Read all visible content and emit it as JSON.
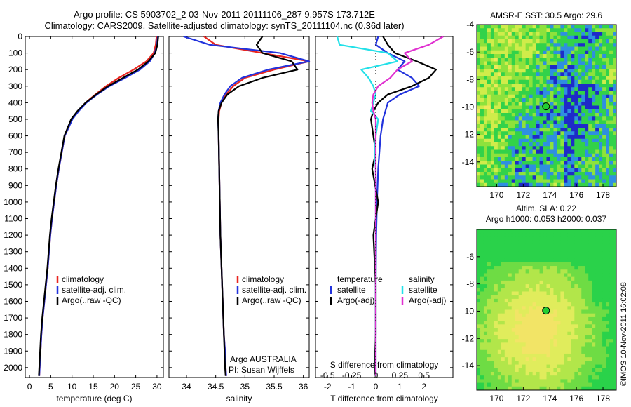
{
  "header": {
    "title_line1": "Argo profile: CS 5903702_2 03-Nov-2011 20111106_287 9.957S 173.712E",
    "title_line2": "Climatology: CARS2009. Satellite-adjusted climatology: synTS_20111104.nc (0.36d later)"
  },
  "colors": {
    "climatology": "#e8251f",
    "satellite": "#2233dd",
    "argo": "#000000",
    "sat_salinity": "#22e0e8",
    "argo_salinity": "#e030d0"
  },
  "chart_data": [
    {
      "type": "line",
      "name": "temperature-profile",
      "xlabel": "temperature (deg C)",
      "xlim": [
        -1,
        31.5
      ],
      "ylim": [
        2060,
        0
      ],
      "xticks": [
        0,
        5,
        10,
        15,
        20,
        25,
        30
      ],
      "yticks": [
        0,
        100,
        200,
        300,
        400,
        500,
        600,
        700,
        800,
        900,
        1000,
        1100,
        1200,
        1300,
        1400,
        1500,
        1600,
        1700,
        1800,
        1900,
        2000
      ],
      "legend": [
        "climatology",
        "satellite-adj. clim.",
        "Argo(..raw -QC)"
      ],
      "series": [
        {
          "name": "climatology",
          "color": "#e8251f",
          "x": [
            29.9,
            29.7,
            29.2,
            27.5,
            24.5,
            21.0,
            18.0,
            15.5,
            13.2,
            11.5,
            10.0,
            9.2,
            8.3,
            7.6,
            6.9,
            6.3,
            5.8,
            5.3,
            4.9,
            4.6,
            4.3,
            3.9,
            3.5,
            3.1,
            2.8,
            2.6,
            2.4,
            2.3
          ],
          "y": [
            0,
            50,
            100,
            150,
            200,
            250,
            300,
            350,
            400,
            450,
            500,
            550,
            600,
            700,
            800,
            900,
            1000,
            1100,
            1200,
            1300,
            1400,
            1500,
            1600,
            1700,
            1800,
            1900,
            2000,
            2050
          ]
        },
        {
          "name": "satellite-adj. clim.",
          "color": "#2233dd",
          "x": [
            30.2,
            30.0,
            29.5,
            28.3,
            26.0,
            22.5,
            18.8,
            15.9,
            13.4,
            11.6,
            10.1,
            9.2,
            8.3,
            7.6,
            6.9,
            6.3,
            5.8,
            5.3,
            4.9,
            4.6,
            4.3,
            3.9,
            3.5,
            3.1,
            2.8,
            2.6,
            2.4,
            2.3
          ],
          "y": [
            0,
            50,
            100,
            150,
            200,
            250,
            300,
            350,
            400,
            450,
            500,
            550,
            600,
            700,
            800,
            900,
            1000,
            1100,
            1200,
            1300,
            1400,
            1500,
            1600,
            1700,
            1800,
            1900,
            2000,
            2050
          ]
        },
        {
          "name": "Argo(..raw -QC)",
          "color": "#000000",
          "x": [
            30.3,
            30.1,
            29.6,
            28.0,
            25.5,
            22.0,
            18.5,
            15.7,
            13.2,
            11.3,
            9.8,
            9.0,
            8.2,
            7.5,
            6.8,
            6.2,
            5.7,
            5.2,
            4.8,
            4.5,
            4.2,
            3.8,
            3.4,
            3.0,
            2.7,
            2.5,
            2.3,
            2.2
          ],
          "y": [
            0,
            50,
            100,
            150,
            200,
            250,
            300,
            350,
            400,
            450,
            500,
            550,
            600,
            700,
            800,
            900,
            1000,
            1100,
            1200,
            1300,
            1400,
            1500,
            1600,
            1700,
            1800,
            1900,
            2000,
            2050
          ]
        }
      ]
    },
    {
      "type": "line",
      "name": "salinity-profile",
      "xlabel": "salinity",
      "xlim": [
        33.7,
        36.1
      ],
      "ylim": [
        2060,
        0
      ],
      "xticks": [
        34,
        34.5,
        35,
        35.5,
        36
      ],
      "xticklabels": [
        "34",
        "34.5",
        "35",
        "35.5",
        "36"
      ],
      "legend": [
        "climatology",
        "satellite-adj. clim.",
        "Argo(..raw -QC)"
      ],
      "annotation": [
        "Argo AUSTRALIA",
        "PI: Susan Wijffels"
      ],
      "series": [
        {
          "name": "climatology",
          "color": "#e8251f",
          "x": [
            34.3,
            34.5,
            35.3,
            36.1,
            35.5,
            35.0,
            34.8,
            34.68,
            34.6,
            34.56,
            34.55,
            34.55,
            34.56,
            34.57,
            34.58,
            34.6,
            34.62,
            34.64,
            34.66,
            34.67,
            34.68
          ],
          "y": [
            0,
            50,
            100,
            150,
            200,
            250,
            300,
            350,
            400,
            450,
            500,
            600,
            800,
            1000,
            1200,
            1400,
            1600,
            1800,
            1900,
            2000,
            2050
          ]
        },
        {
          "name": "satellite-adj. clim.",
          "color": "#2233dd",
          "x": [
            33.95,
            34.4,
            35.6,
            36.1,
            35.4,
            34.95,
            34.75,
            34.65,
            34.58,
            34.55,
            34.54,
            34.55,
            34.56,
            34.57,
            34.58,
            34.6,
            34.62,
            34.64,
            34.66,
            34.67,
            34.68
          ],
          "y": [
            0,
            50,
            100,
            150,
            200,
            250,
            300,
            350,
            400,
            450,
            500,
            600,
            800,
            1000,
            1200,
            1400,
            1600,
            1800,
            1900,
            2000,
            2050
          ]
        },
        {
          "name": "Argo(..raw -QC)",
          "color": "#000000",
          "x": [
            35.3,
            35.2,
            35.3,
            35.8,
            35.9,
            35.3,
            34.9,
            34.7,
            34.6,
            34.55,
            34.54,
            34.55,
            34.56,
            34.57,
            34.58,
            34.6,
            34.62,
            34.64,
            34.65,
            34.66,
            34.67
          ],
          "y": [
            0,
            50,
            100,
            150,
            200,
            250,
            300,
            350,
            400,
            450,
            500,
            600,
            800,
            1000,
            1200,
            1400,
            1600,
            1800,
            1900,
            2000,
            2050
          ]
        }
      ]
    },
    {
      "type": "line",
      "name": "difference-profile",
      "xlabel": "T difference from climatology",
      "xlabel_top": "S difference from climatology",
      "xlim": [
        -2.5,
        3.2
      ],
      "ylim": [
        2060,
        0
      ],
      "xticks": [
        -2,
        -1,
        0,
        1,
        2
      ],
      "xticks_s": [
        -0.5,
        -0.25,
        0,
        0.25,
        0.5
      ],
      "xticklabels_s": [
        "-0.5",
        "-0.25",
        "0",
        "0.25",
        "0.5"
      ],
      "legend_left": [
        "temperature",
        "satellite",
        "Argo(-adj)"
      ],
      "legend_right": [
        "salinity",
        "satellite",
        "Argo(-adj)"
      ],
      "series": [
        {
          "name": "T satellite",
          "color": "#2233dd",
          "x": [
            0.1,
            0.0,
            0.5,
            1.2,
            0.9,
            1.5,
            1.8,
            1.0,
            0.5,
            0.4,
            0.3,
            0.2,
            0.15,
            0.1,
            0.05,
            0.02,
            0.0,
            0.0,
            0.0,
            0.0
          ],
          "y": [
            0,
            50,
            100,
            150,
            200,
            250,
            300,
            350,
            400,
            450,
            500,
            600,
            700,
            800,
            1000,
            1200,
            1500,
            1800,
            2000,
            2050
          ]
        },
        {
          "name": "T Argo(-adj)",
          "color": "#000000",
          "x": [
            0.3,
            0.5,
            0.8,
            1.7,
            2.5,
            2.2,
            1.5,
            0.5,
            0.1,
            -0.1,
            -0.2,
            -0.1,
            0.0,
            -0.15,
            0.1,
            -0.1,
            0.0,
            0.0,
            -0.05,
            0.0
          ],
          "y": [
            0,
            50,
            100,
            150,
            200,
            250,
            300,
            350,
            400,
            450,
            500,
            600,
            700,
            800,
            1000,
            1200,
            1500,
            1800,
            2000,
            2050
          ]
        },
        {
          "name": "S satellite",
          "color": "#22e0e8",
          "x": [
            -1.6,
            -1.5,
            0.5,
            0.9,
            -0.6,
            -0.3,
            -0.1,
            0.0,
            -0.1,
            -0.2,
            0.1,
            0.0,
            -0.05,
            0.0,
            0.0,
            0.0,
            0.0,
            0.0,
            0.0,
            0.0
          ],
          "y": [
            0,
            50,
            100,
            150,
            200,
            250,
            300,
            350,
            400,
            450,
            500,
            600,
            700,
            800,
            1000,
            1200,
            1500,
            1800,
            2000,
            2050
          ]
        },
        {
          "name": "S Argo(-adj)",
          "color": "#e030d0",
          "x": [
            2.8,
            2.2,
            1.2,
            1.5,
            0.9,
            0.6,
            0.1,
            -0.1,
            -0.15,
            -0.1,
            0.0,
            0.0,
            0.0,
            0.0,
            0.0,
            0.0,
            0.0,
            0.0,
            0.0,
            0.0
          ],
          "y": [
            0,
            50,
            100,
            150,
            200,
            250,
            300,
            350,
            400,
            450,
            500,
            600,
            700,
            800,
            1000,
            1200,
            1500,
            1800,
            2000,
            2050
          ]
        }
      ]
    },
    {
      "type": "heatmap",
      "name": "sst-map",
      "title": "AMSR-E SST: 30.5 Argo: 29.6",
      "xlim": [
        168.5,
        179
      ],
      "ylim": [
        -15.8,
        -4
      ],
      "xticks": [
        170,
        172,
        174,
        176,
        178
      ],
      "yticks": [
        -4,
        -6,
        -8,
        -10,
        -12,
        -14
      ],
      "marker": {
        "lon": 173.712,
        "lat": -9.957
      }
    },
    {
      "type": "heatmap",
      "name": "sla-map",
      "title_line1": "Altim. SLA: 0.22",
      "title_line2": "Argo h1000: 0.053 h2000: 0.037",
      "xlim": [
        168.5,
        179
      ],
      "ylim": [
        -15.8,
        -4
      ],
      "xticks": [
        170,
        172,
        174,
        176,
        178
      ],
      "yticks": [
        -6,
        -8,
        -10,
        -12,
        -14
      ],
      "marker": {
        "lon": 173.712,
        "lat": -9.957
      }
    }
  ],
  "footer": {
    "credit": "©IMOS 10-Nov-2011 16:02:08"
  }
}
